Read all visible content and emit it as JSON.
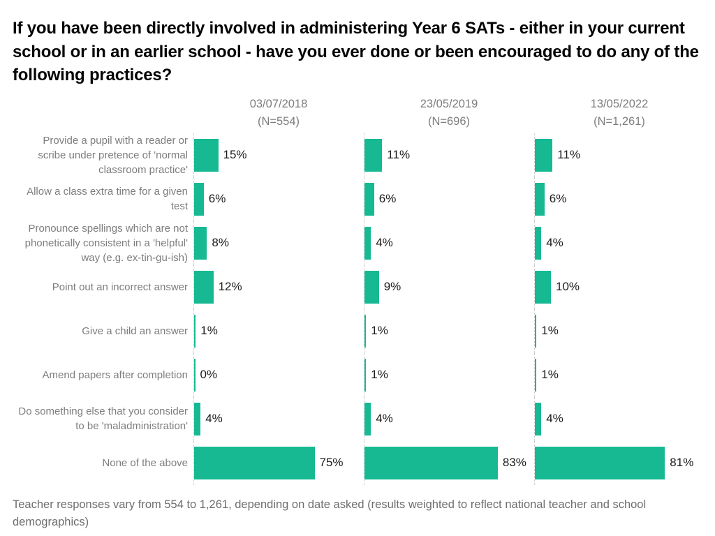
{
  "title": "If you have been directly involved in administering Year 6 SATs - either in your current school or in an earlier school - have you ever done or been encouraged to do any of the following practices?",
  "footnote": "Teacher responses vary from 554 to 1,261, depending on date asked (results weighted to reflect national teacher and school demographics)",
  "colors": {
    "bar": "#16b992",
    "axis": "#cfcfcf",
    "label": "#7d7d7d",
    "value": "#1c1c1c",
    "title": "#050505",
    "footer": "#6e6e6e"
  },
  "chart_data": {
    "type": "bar",
    "orientation": "horizontal",
    "value_suffix": "%",
    "xlim": [
      0,
      100
    ],
    "grid": false,
    "groups": [
      {
        "label": "03/07/2018",
        "sublabel": "(N=554)"
      },
      {
        "label": "23/05/2019",
        "sublabel": "(N=696)"
      },
      {
        "label": "13/05/2022",
        "sublabel": "(N=1,261)"
      }
    ],
    "categories": [
      "Provide a pupil with a reader or scribe under pretence of 'normal classroom practice'",
      "Allow a class extra time for a given test",
      "Pronounce spellings which are not phonetically consistent in a 'helpful' way (e.g. ex-tin-gu-ish)",
      "Point out an incorrect answer",
      "Give a child an answer",
      "Amend papers after completion",
      "Do something else that you consider to be 'maladministration'",
      "None of the above"
    ],
    "series": [
      {
        "name": "03/07/2018 (N=554)",
        "values": [
          15,
          6,
          8,
          12,
          1,
          0,
          4,
          75
        ]
      },
      {
        "name": "23/05/2019 (N=696)",
        "values": [
          11,
          6,
          4,
          9,
          1,
          1,
          4,
          83
        ]
      },
      {
        "name": "13/05/2022 (N=1,261)",
        "values": [
          11,
          6,
          4,
          10,
          1,
          1,
          4,
          81
        ]
      }
    ]
  }
}
